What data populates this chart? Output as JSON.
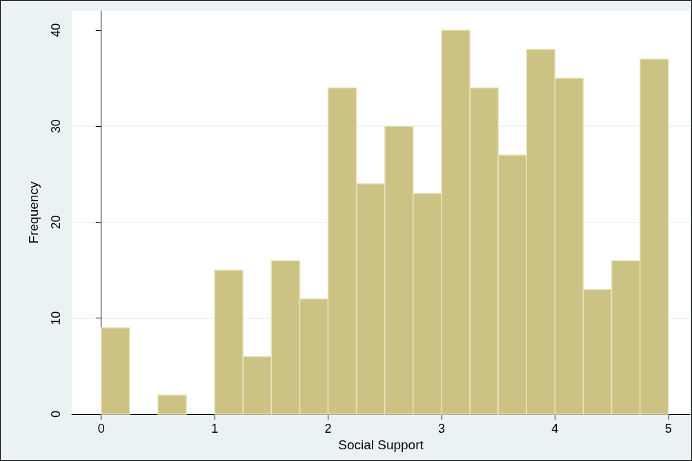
{
  "chart_data": {
    "type": "histogram",
    "xlabel": "Social Support",
    "ylabel": "Frequency",
    "bins": [
      0,
      0.25,
      0.5,
      0.75,
      1,
      1.25,
      1.5,
      1.75,
      2,
      2.25,
      2.5,
      2.75,
      3,
      3.25,
      3.5,
      3.75,
      4,
      4.25,
      4.5,
      4.75,
      5
    ],
    "values": [
      9,
      0,
      2,
      0,
      15,
      6,
      16,
      12,
      34,
      24,
      30,
      23,
      40,
      34,
      27,
      38,
      35,
      13,
      16,
      37
    ],
    "color": "#ccc283",
    "xlim": [
      -0.26,
      5.19
    ],
    "xticks": [
      0,
      1,
      2,
      3,
      4,
      5
    ],
    "ylim": [
      0,
      42
    ],
    "yticks": [
      0,
      10,
      20,
      30,
      40
    ],
    "grid": "y"
  }
}
